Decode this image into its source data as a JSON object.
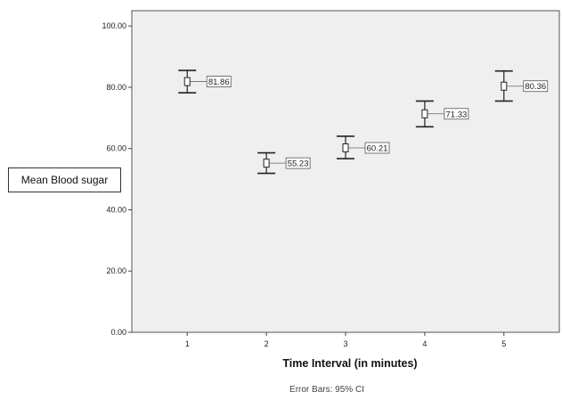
{
  "chart_data": {
    "type": "scatter",
    "title": "",
    "xlabel": "Time Interval (in minutes)",
    "ylabel": "Mean Blood sugar",
    "footnote": "Error Bars: 95% CI",
    "x": [
      1,
      2,
      3,
      4,
      5
    ],
    "x_tick_labels": [
      "1",
      "2",
      "3",
      "4",
      "5"
    ],
    "y_tick_labels": [
      "0.00",
      "20.00",
      "40.00",
      "60.00",
      "80.00",
      "100.00"
    ],
    "y_ticks": [
      0,
      20,
      40,
      60,
      80,
      100
    ],
    "ylim": [
      0,
      105
    ],
    "xlim": [
      0.3,
      5.7
    ],
    "series": [
      {
        "mean": [
          81.86,
          55.23,
          60.21,
          71.33,
          80.36
        ],
        "mean_labels": [
          "81.86",
          "55.23",
          "60.21",
          "71.33",
          "80.36"
        ],
        "ci_lower": [
          78.2,
          51.9,
          56.7,
          67.1,
          75.5
        ],
        "ci_upper": [
          85.5,
          58.6,
          64.0,
          75.5,
          85.3
        ]
      }
    ],
    "grid": false,
    "plot_background": "#efefef",
    "marker_color": "#222222"
  }
}
